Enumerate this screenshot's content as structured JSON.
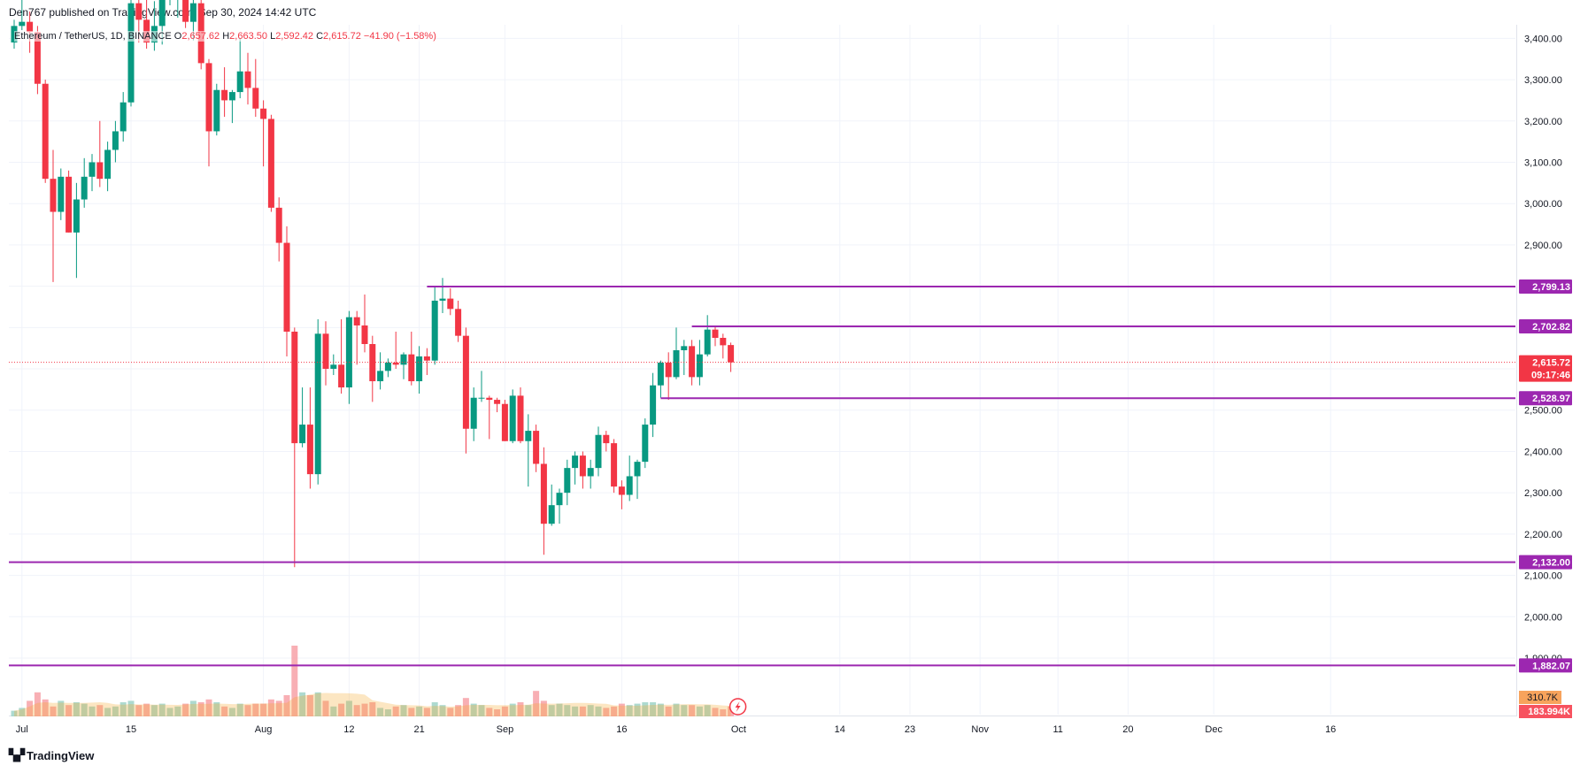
{
  "header": {
    "publisher": "Den767 published on TradingView.com, Sep 30, 2024 14:42 UTC"
  },
  "symbol": {
    "name": "Ethereum / TetherUS, 1D, BINANCE",
    "open_label": "O",
    "open": "2,657.62",
    "high_label": "H",
    "high": "2,663.50",
    "low_label": "L",
    "low": "2,592.42",
    "close_label": "C",
    "close": "2,615.72",
    "change": "−41.90 (−1.58%)"
  },
  "footer": {
    "brand": "TradingView"
  },
  "colors": {
    "up": "#089981",
    "down": "#f23645",
    "level": "#9c27b0",
    "vol_up": "#9fd4c8",
    "vol_down": "#f7a1a7",
    "vol_ma": "#f5a623",
    "grid": "#f0f3fa"
  },
  "chart_data": {
    "type": "candlestick",
    "title": "Ethereum / TetherUS, 1D, BINANCE",
    "ylim": [
      1870,
      3450
    ],
    "y_ticks": [
      "1,900.00",
      "2,000.00",
      "2,100.00",
      "2,200.00",
      "2,300.00",
      "2,400.00",
      "2,500.00",
      "2,600.00",
      "2,700.00",
      "2,800.00",
      "2,900.00",
      "3,000.00",
      "3,100.00",
      "3,200.00",
      "3,300.00",
      "3,400.00"
    ],
    "x_ticks": [
      "Jul",
      "15",
      "Aug",
      "12",
      "21",
      "Sep",
      "16",
      "Oct",
      "14",
      "23",
      "Nov",
      "11",
      "20",
      "Dec",
      "16"
    ],
    "x_start_date": "2024-06-30",
    "candles": [
      {
        "date": "2024-06-30",
        "o": 3390,
        "h": 3445,
        "l": 3375,
        "c": 3430
      },
      {
        "date": "2024-07-01",
        "o": 3430,
        "h": 3520,
        "l": 3420,
        "c": 3440
      },
      {
        "date": "2024-07-02",
        "o": 3440,
        "h": 3465,
        "l": 3365,
        "c": 3415
      },
      {
        "date": "2024-07-03",
        "o": 3415,
        "h": 3430,
        "l": 3265,
        "c": 3290
      },
      {
        "date": "2024-07-04",
        "o": 3290,
        "h": 3300,
        "l": 3050,
        "c": 3060
      },
      {
        "date": "2024-07-05",
        "o": 3060,
        "h": 3130,
        "l": 2810,
        "c": 2980
      },
      {
        "date": "2024-07-06",
        "o": 2980,
        "h": 3085,
        "l": 2960,
        "c": 3065
      },
      {
        "date": "2024-07-07",
        "o": 3065,
        "h": 3080,
        "l": 2930,
        "c": 2930
      },
      {
        "date": "2024-07-08",
        "o": 2930,
        "h": 3050,
        "l": 2820,
        "c": 3010
      },
      {
        "date": "2024-07-09",
        "o": 3010,
        "h": 3110,
        "l": 2990,
        "c": 3065
      },
      {
        "date": "2024-07-10",
        "o": 3065,
        "h": 3120,
        "l": 3030,
        "c": 3100
      },
      {
        "date": "2024-07-11",
        "o": 3100,
        "h": 3200,
        "l": 3040,
        "c": 3060
      },
      {
        "date": "2024-07-12",
        "o": 3060,
        "h": 3150,
        "l": 3030,
        "c": 3130
      },
      {
        "date": "2024-07-13",
        "o": 3130,
        "h": 3200,
        "l": 3100,
        "c": 3175
      },
      {
        "date": "2024-07-14",
        "o": 3175,
        "h": 3270,
        "l": 3150,
        "c": 3245
      },
      {
        "date": "2024-07-15",
        "o": 3245,
        "h": 3500,
        "l": 3235,
        "c": 3485
      },
      {
        "date": "2024-07-16",
        "o": 3485,
        "h": 3500,
        "l": 3390,
        "c": 3445
      },
      {
        "date": "2024-07-17",
        "o": 3445,
        "h": 3520,
        "l": 3375,
        "c": 3390
      },
      {
        "date": "2024-07-18",
        "o": 3390,
        "h": 3490,
        "l": 3370,
        "c": 3430
      },
      {
        "date": "2024-07-19",
        "o": 3430,
        "h": 3545,
        "l": 3385,
        "c": 3505
      },
      {
        "date": "2024-07-20",
        "o": 3505,
        "h": 3535,
        "l": 3480,
        "c": 3515
      },
      {
        "date": "2024-07-21",
        "o": 3515,
        "h": 3545,
        "l": 3450,
        "c": 3535
      },
      {
        "date": "2024-07-22",
        "o": 3535,
        "h": 3565,
        "l": 3425,
        "c": 3440
      },
      {
        "date": "2024-07-23",
        "o": 3440,
        "h": 3540,
        "l": 3395,
        "c": 3485
      },
      {
        "date": "2024-07-24",
        "o": 3485,
        "h": 3500,
        "l": 3325,
        "c": 3340
      },
      {
        "date": "2024-07-25",
        "o": 3340,
        "h": 3350,
        "l": 3090,
        "c": 3175
      },
      {
        "date": "2024-07-26",
        "o": 3175,
        "h": 3290,
        "l": 3165,
        "c": 3275
      },
      {
        "date": "2024-07-27",
        "o": 3275,
        "h": 3330,
        "l": 3210,
        "c": 3250
      },
      {
        "date": "2024-07-28",
        "o": 3250,
        "h": 3275,
        "l": 3195,
        "c": 3270
      },
      {
        "date": "2024-07-29",
        "o": 3270,
        "h": 3400,
        "l": 3255,
        "c": 3320
      },
      {
        "date": "2024-07-30",
        "o": 3320,
        "h": 3365,
        "l": 3240,
        "c": 3280
      },
      {
        "date": "2024-07-31",
        "o": 3280,
        "h": 3350,
        "l": 3210,
        "c": 3230
      },
      {
        "date": "2024-08-01",
        "o": 3230,
        "h": 3250,
        "l": 3090,
        "c": 3205
      },
      {
        "date": "2024-08-02",
        "o": 3205,
        "h": 3215,
        "l": 2980,
        "c": 2990
      },
      {
        "date": "2024-08-03",
        "o": 2990,
        "h": 3015,
        "l": 2860,
        "c": 2905
      },
      {
        "date": "2024-08-04",
        "o": 2905,
        "h": 2945,
        "l": 2630,
        "c": 2690
      },
      {
        "date": "2024-08-05",
        "o": 2690,
        "h": 2700,
        "l": 2120,
        "c": 2420
      },
      {
        "date": "2024-08-06",
        "o": 2420,
        "h": 2555,
        "l": 2410,
        "c": 2465
      },
      {
        "date": "2024-08-07",
        "o": 2465,
        "h": 2555,
        "l": 2310,
        "c": 2345
      },
      {
        "date": "2024-08-08",
        "o": 2345,
        "h": 2720,
        "l": 2320,
        "c": 2685
      },
      {
        "date": "2024-08-09",
        "o": 2685,
        "h": 2715,
        "l": 2560,
        "c": 2600
      },
      {
        "date": "2024-08-10",
        "o": 2600,
        "h": 2635,
        "l": 2585,
        "c": 2610
      },
      {
        "date": "2024-08-11",
        "o": 2610,
        "h": 2720,
        "l": 2540,
        "c": 2555
      },
      {
        "date": "2024-08-12",
        "o": 2555,
        "h": 2740,
        "l": 2515,
        "c": 2725
      },
      {
        "date": "2024-08-13",
        "o": 2725,
        "h": 2740,
        "l": 2610,
        "c": 2705
      },
      {
        "date": "2024-08-14",
        "o": 2705,
        "h": 2780,
        "l": 2640,
        "c": 2660
      },
      {
        "date": "2024-08-15",
        "o": 2660,
        "h": 2680,
        "l": 2520,
        "c": 2570
      },
      {
        "date": "2024-08-16",
        "o": 2570,
        "h": 2640,
        "l": 2550,
        "c": 2595
      },
      {
        "date": "2024-08-17",
        "o": 2595,
        "h": 2625,
        "l": 2580,
        "c": 2615
      },
      {
        "date": "2024-08-18",
        "o": 2615,
        "h": 2690,
        "l": 2600,
        "c": 2610
      },
      {
        "date": "2024-08-19",
        "o": 2610,
        "h": 2640,
        "l": 2575,
        "c": 2635
      },
      {
        "date": "2024-08-20",
        "o": 2635,
        "h": 2690,
        "l": 2560,
        "c": 2570
      },
      {
        "date": "2024-08-21",
        "o": 2570,
        "h": 2655,
        "l": 2540,
        "c": 2630
      },
      {
        "date": "2024-08-22",
        "o": 2630,
        "h": 2650,
        "l": 2585,
        "c": 2620
      },
      {
        "date": "2024-08-23",
        "o": 2620,
        "h": 2800,
        "l": 2610,
        "c": 2765
      },
      {
        "date": "2024-08-24",
        "o": 2765,
        "h": 2820,
        "l": 2735,
        "c": 2770
      },
      {
        "date": "2024-08-25",
        "o": 2770,
        "h": 2795,
        "l": 2730,
        "c": 2745
      },
      {
        "date": "2024-08-26",
        "o": 2745,
        "h": 2765,
        "l": 2665,
        "c": 2680
      },
      {
        "date": "2024-08-27",
        "o": 2680,
        "h": 2700,
        "l": 2395,
        "c": 2455
      },
      {
        "date": "2024-08-28",
        "o": 2455,
        "h": 2555,
        "l": 2425,
        "c": 2530
      },
      {
        "date": "2024-08-29",
        "o": 2530,
        "h": 2595,
        "l": 2520,
        "c": 2530
      },
      {
        "date": "2024-08-30",
        "o": 2530,
        "h": 2535,
        "l": 2430,
        "c": 2525
      },
      {
        "date": "2024-08-31",
        "o": 2525,
        "h": 2530,
        "l": 2495,
        "c": 2515
      },
      {
        "date": "2024-09-01",
        "o": 2515,
        "h": 2525,
        "l": 2425,
        "c": 2425
      },
      {
        "date": "2024-09-02",
        "o": 2425,
        "h": 2550,
        "l": 2420,
        "c": 2535
      },
      {
        "date": "2024-09-03",
        "o": 2535,
        "h": 2555,
        "l": 2420,
        "c": 2425
      },
      {
        "date": "2024-09-04",
        "o": 2425,
        "h": 2490,
        "l": 2315,
        "c": 2450
      },
      {
        "date": "2024-09-05",
        "o": 2450,
        "h": 2465,
        "l": 2350,
        "c": 2370
      },
      {
        "date": "2024-09-06",
        "o": 2370,
        "h": 2410,
        "l": 2150,
        "c": 2225
      },
      {
        "date": "2024-09-07",
        "o": 2225,
        "h": 2320,
        "l": 2220,
        "c": 2270
      },
      {
        "date": "2024-09-08",
        "o": 2270,
        "h": 2310,
        "l": 2225,
        "c": 2300
      },
      {
        "date": "2024-09-09",
        "o": 2300,
        "h": 2380,
        "l": 2270,
        "c": 2360
      },
      {
        "date": "2024-09-10",
        "o": 2360,
        "h": 2400,
        "l": 2320,
        "c": 2390
      },
      {
        "date": "2024-09-11",
        "o": 2390,
        "h": 2400,
        "l": 2310,
        "c": 2340
      },
      {
        "date": "2024-09-12",
        "o": 2340,
        "h": 2380,
        "l": 2310,
        "c": 2360
      },
      {
        "date": "2024-09-13",
        "o": 2360,
        "h": 2460,
        "l": 2340,
        "c": 2440
      },
      {
        "date": "2024-09-14",
        "o": 2440,
        "h": 2450,
        "l": 2400,
        "c": 2420
      },
      {
        "date": "2024-09-15",
        "o": 2420,
        "h": 2430,
        "l": 2300,
        "c": 2315
      },
      {
        "date": "2024-09-16",
        "o": 2315,
        "h": 2330,
        "l": 2260,
        "c": 2295
      },
      {
        "date": "2024-09-17",
        "o": 2295,
        "h": 2390,
        "l": 2280,
        "c": 2340
      },
      {
        "date": "2024-09-18",
        "o": 2340,
        "h": 2380,
        "l": 2285,
        "c": 2375
      },
      {
        "date": "2024-09-19",
        "o": 2375,
        "h": 2480,
        "l": 2360,
        "c": 2465
      },
      {
        "date": "2024-09-20",
        "o": 2465,
        "h": 2590,
        "l": 2435,
        "c": 2560
      },
      {
        "date": "2024-09-21",
        "o": 2560,
        "h": 2620,
        "l": 2530,
        "c": 2615
      },
      {
        "date": "2024-09-22",
        "o": 2615,
        "h": 2640,
        "l": 2525,
        "c": 2580
      },
      {
        "date": "2024-09-23",
        "o": 2580,
        "h": 2700,
        "l": 2575,
        "c": 2645
      },
      {
        "date": "2024-09-24",
        "o": 2645,
        "h": 2670,
        "l": 2585,
        "c": 2655
      },
      {
        "date": "2024-09-25",
        "o": 2655,
        "h": 2670,
        "l": 2560,
        "c": 2580
      },
      {
        "date": "2024-09-26",
        "o": 2580,
        "h": 2670,
        "l": 2560,
        "c": 2635
      },
      {
        "date": "2024-09-27",
        "o": 2635,
        "h": 2730,
        "l": 2630,
        "c": 2695
      },
      {
        "date": "2024-09-28",
        "o": 2695,
        "h": 2705,
        "l": 2655,
        "c": 2675
      },
      {
        "date": "2024-09-29",
        "o": 2675,
        "h": 2685,
        "l": 2625,
        "c": 2657
      },
      {
        "date": "2024-09-30",
        "o": 2657.62,
        "h": 2663.5,
        "l": 2592.42,
        "c": 2615.72
      }
    ],
    "volume_rel": [
      0.2,
      0.3,
      0.55,
      0.85,
      0.6,
      0.35,
      0.55,
      0.4,
      0.5,
      0.45,
      0.35,
      0.4,
      0.3,
      0.35,
      0.5,
      0.55,
      0.4,
      0.45,
      0.4,
      0.45,
      0.3,
      0.35,
      0.45,
      0.55,
      0.5,
      0.6,
      0.5,
      0.35,
      0.3,
      0.45,
      0.4,
      0.45,
      0.45,
      0.6,
      0.55,
      0.75,
      2.5,
      0.85,
      0.75,
      0.85,
      0.55,
      0.35,
      0.45,
      0.55,
      0.4,
      0.45,
      0.5,
      0.3,
      0.25,
      0.35,
      0.4,
      0.3,
      0.35,
      0.3,
      0.5,
      0.4,
      0.3,
      0.4,
      0.65,
      0.45,
      0.4,
      0.3,
      0.25,
      0.35,
      0.45,
      0.5,
      0.4,
      0.9,
      0.55,
      0.4,
      0.45,
      0.4,
      0.35,
      0.35,
      0.4,
      0.35,
      0.3,
      0.35,
      0.45,
      0.4,
      0.45,
      0.5,
      0.5,
      0.45,
      0.35,
      0.45,
      0.4,
      0.4,
      0.35,
      0.4,
      0.3,
      0.25,
      0.35
    ],
    "levels": [
      {
        "label": "2,799.13",
        "value": 2799.13,
        "start_date": "2024-08-22"
      },
      {
        "label": "2,702.82",
        "value": 2702.82,
        "start_date": "2024-09-25"
      },
      {
        "label": "2,528.97",
        "value": 2528.97,
        "start_date": "2024-09-21"
      },
      {
        "label": "2,132.00",
        "value": 2132.0,
        "start_date": "2024-06-30"
      },
      {
        "label": "1,882.07",
        "value": 1882.07,
        "start_date": "2024-06-30"
      }
    ],
    "last_price": {
      "label": "2,615.72",
      "countdown": "09:17:46",
      "value": 2615.72
    },
    "volume_labels": {
      "ma": "310.7K",
      "volume": "183.994K"
    }
  }
}
